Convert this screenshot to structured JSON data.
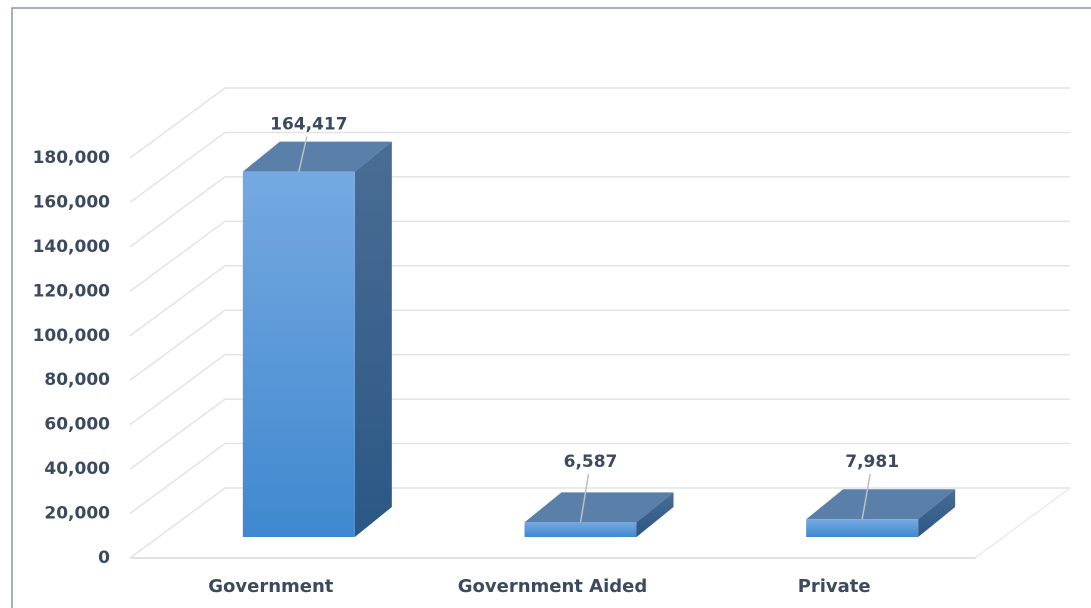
{
  "chart_data": {
    "type": "bar3d",
    "categories": [
      "Government",
      "Government Aided",
      "Private"
    ],
    "values": [
      164417,
      6587,
      7981
    ],
    "value_labels": [
      "164,417",
      "6,587",
      "7,981"
    ],
    "color": "#4a90d6",
    "ylim": [
      0,
      180000
    ],
    "yticks": [
      0,
      {
        "value": 20000,
        "label": "20,000"
      },
      {
        "value": 40000,
        "label": "40,000"
      },
      {
        "value": 60000,
        "label": "60,000"
      },
      {
        "value": 80000,
        "label": "80,000"
      },
      {
        "value": 100000,
        "label": "100,000"
      },
      {
        "value": 120000,
        "label": "120,000"
      },
      {
        "value": 140000,
        "label": "140,000"
      },
      {
        "value": 160000,
        "label": "160,000"
      },
      {
        "value": 180000,
        "label": "180,000"
      }
    ],
    "grid": true
  }
}
